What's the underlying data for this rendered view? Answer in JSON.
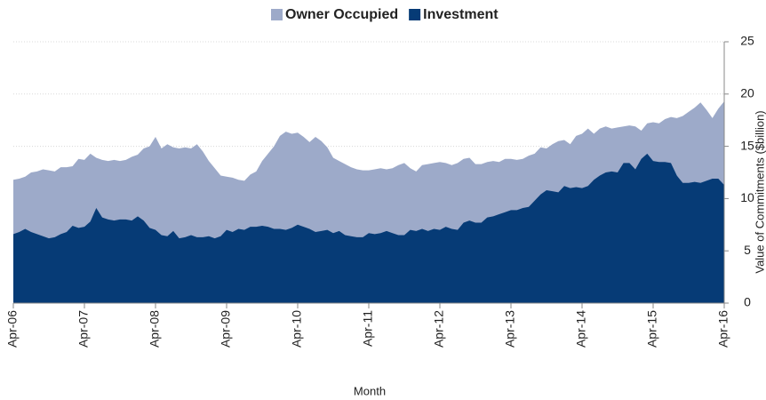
{
  "chart_data": {
    "type": "area",
    "x_label": "Month",
    "y_label": "Value of Commitments ($billion)",
    "categories": [
      "Apr-06",
      null,
      null,
      null,
      null,
      null,
      null,
      null,
      null,
      null,
      null,
      null,
      "Apr-07",
      null,
      null,
      null,
      null,
      null,
      null,
      null,
      null,
      null,
      null,
      null,
      "Apr-08",
      null,
      null,
      null,
      null,
      null,
      null,
      null,
      null,
      null,
      null,
      null,
      "Apr-09",
      null,
      null,
      null,
      null,
      null,
      null,
      null,
      null,
      null,
      null,
      null,
      "Apr-10",
      null,
      null,
      null,
      null,
      null,
      null,
      null,
      null,
      null,
      null,
      null,
      "Apr-11",
      null,
      null,
      null,
      null,
      null,
      null,
      null,
      null,
      null,
      null,
      null,
      "Apr-12",
      null,
      null,
      null,
      null,
      null,
      null,
      null,
      null,
      null,
      null,
      null,
      "Apr-13",
      null,
      null,
      null,
      null,
      null,
      null,
      null,
      null,
      null,
      null,
      null,
      "Apr-14",
      null,
      null,
      null,
      null,
      null,
      null,
      null,
      null,
      null,
      null,
      null,
      "Apr-15",
      null,
      null,
      null,
      null,
      null,
      null,
      null,
      null,
      null,
      null,
      null,
      "Apr-16"
    ],
    "series": [
      {
        "name": "Owner Occupied",
        "color": "#9daac9",
        "values": [
          11.8,
          11.9,
          12.1,
          12.5,
          12.6,
          12.8,
          12.7,
          12.6,
          13.0,
          13.0,
          13.1,
          13.8,
          13.7,
          14.3,
          13.9,
          13.7,
          13.6,
          13.7,
          13.6,
          13.7,
          14.0,
          14.2,
          14.8,
          15.0,
          15.9,
          14.8,
          15.2,
          14.9,
          14.8,
          14.9,
          14.8,
          15.2,
          14.5,
          13.6,
          12.9,
          12.2,
          12.1,
          12.0,
          11.8,
          11.7,
          12.3,
          12.6,
          13.6,
          14.3,
          15.0,
          16.0,
          16.4,
          16.2,
          16.3,
          15.9,
          15.4,
          15.9,
          15.5,
          14.9,
          13.9,
          13.6,
          13.3,
          13.0,
          12.8,
          12.7,
          12.7,
          12.8,
          12.9,
          12.8,
          12.9,
          13.2,
          13.4,
          12.9,
          12.6,
          13.2,
          13.3,
          13.4,
          13.5,
          13.4,
          13.2,
          13.4,
          13.8,
          13.9,
          13.3,
          13.3,
          13.5,
          13.6,
          13.5,
          13.8,
          13.8,
          13.7,
          13.8,
          14.1,
          14.3,
          14.9,
          14.8,
          15.2,
          15.5,
          15.6,
          15.2,
          16.0,
          16.2,
          16.7,
          16.2,
          16.7,
          16.9,
          16.7,
          16.8,
          16.9,
          17.0,
          16.9,
          16.5,
          17.2,
          17.3,
          17.2,
          17.6,
          17.8,
          17.7,
          17.9,
          18.3,
          18.7,
          19.2,
          18.5,
          17.7,
          18.6,
          19.3
        ]
      },
      {
        "name": "Investment",
        "color": "#063b76",
        "values": [
          6.6,
          6.8,
          7.1,
          6.8,
          6.6,
          6.4,
          6.2,
          6.3,
          6.6,
          6.8,
          7.4,
          7.2,
          7.3,
          7.8,
          9.1,
          8.2,
          8.0,
          7.9,
          8.0,
          8.0,
          7.9,
          8.3,
          7.9,
          7.2,
          7.0,
          6.5,
          6.4,
          6.9,
          6.2,
          6.3,
          6.5,
          6.3,
          6.3,
          6.4,
          6.2,
          6.4,
          7.0,
          6.8,
          7.1,
          7.0,
          7.3,
          7.3,
          7.4,
          7.3,
          7.1,
          7.1,
          7.0,
          7.2,
          7.5,
          7.3,
          7.1,
          6.8,
          6.9,
          7.0,
          6.7,
          6.9,
          6.5,
          6.4,
          6.3,
          6.3,
          6.7,
          6.6,
          6.7,
          6.9,
          6.7,
          6.5,
          6.5,
          7.0,
          6.9,
          7.1,
          6.9,
          7.1,
          7.0,
          7.3,
          7.1,
          7.0,
          7.7,
          7.9,
          7.7,
          7.7,
          8.2,
          8.3,
          8.5,
          8.7,
          8.9,
          8.9,
          9.1,
          9.2,
          9.8,
          10.4,
          10.8,
          10.7,
          10.6,
          11.2,
          11.0,
          11.1,
          11.0,
          11.2,
          11.8,
          12.2,
          12.5,
          12.6,
          12.5,
          13.4,
          13.4,
          12.8,
          13.8,
          14.3,
          13.6,
          13.5,
          13.5,
          13.4,
          12.2,
          11.5,
          11.5,
          11.6,
          11.5,
          11.7,
          11.9,
          11.9,
          11.3
        ]
      }
    ],
    "ylim": [
      0,
      25
    ],
    "yticks": [
      0,
      5,
      10,
      15,
      20,
      25
    ],
    "grid": true,
    "legend": "top"
  }
}
